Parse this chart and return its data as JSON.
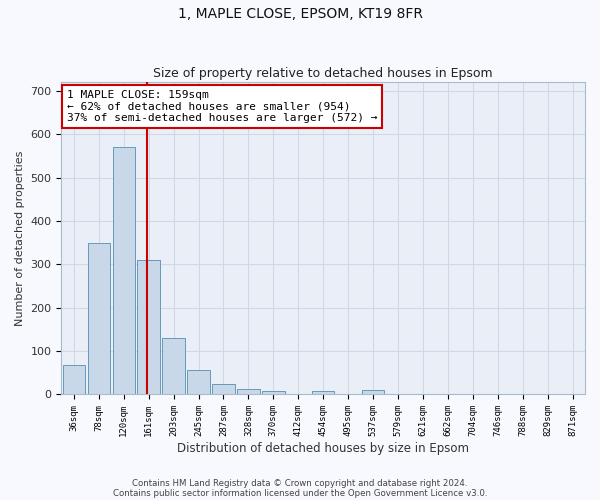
{
  "title1": "1, MAPLE CLOSE, EPSOM, KT19 8FR",
  "title2": "Size of property relative to detached houses in Epsom",
  "xlabel": "Distribution of detached houses by size in Epsom",
  "ylabel": "Number of detached properties",
  "categories": [
    "36sqm",
    "78sqm",
    "120sqm",
    "161sqm",
    "203sqm",
    "245sqm",
    "287sqm",
    "328sqm",
    "370sqm",
    "412sqm",
    "454sqm",
    "495sqm",
    "537sqm",
    "579sqm",
    "621sqm",
    "662sqm",
    "704sqm",
    "746sqm",
    "788sqm",
    "829sqm",
    "871sqm"
  ],
  "values": [
    68,
    350,
    570,
    310,
    130,
    57,
    25,
    13,
    7,
    0,
    7,
    0,
    10,
    0,
    0,
    0,
    0,
    0,
    0,
    0,
    0
  ],
  "bar_color": "#c8d8e8",
  "bar_edge_color": "#6699bb",
  "grid_color": "#d0d8e8",
  "background_color": "#f8f8ff",
  "annotation_text": "1 MAPLE CLOSE: 159sqm\n← 62% of detached houses are smaller (954)\n37% of semi-detached houses are larger (572) →",
  "annotation_box_color": "#ffffff",
  "annotation_box_edge_color": "#cc0000",
  "property_line_color": "#cc0000",
  "ylim": [
    0,
    720
  ],
  "yticks": [
    0,
    100,
    200,
    300,
    400,
    500,
    600,
    700
  ],
  "footnote1": "Contains HM Land Registry data © Crown copyright and database right 2024.",
  "footnote2": "Contains public sector information licensed under the Open Government Licence v3.0."
}
